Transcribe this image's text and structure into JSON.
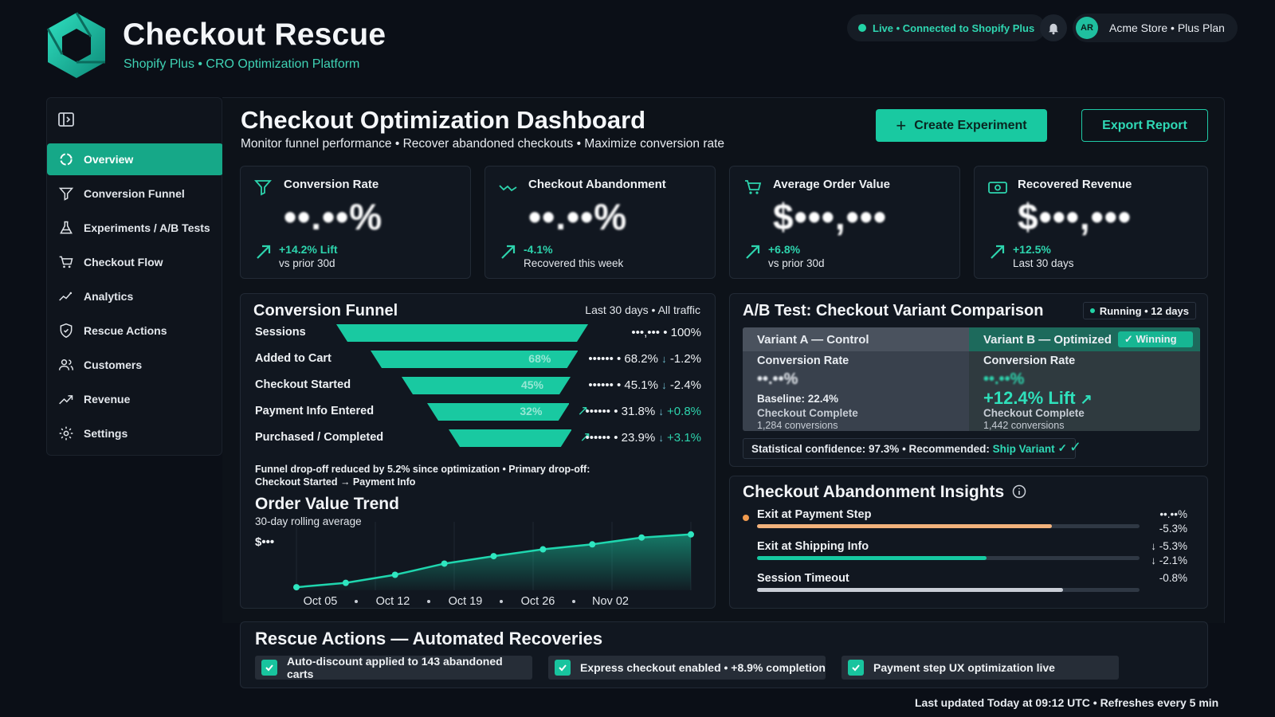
{
  "brand": {
    "title": "Checkout Rescue",
    "subtitle": "Shopify Plus • CRO Optimization Platform",
    "accent": "#19c9a1"
  },
  "header": {
    "live_status": "Live • Connected to Shopify Plus",
    "avatar_initials": "AR",
    "store": "Acme Store • Plus Plan"
  },
  "sidebar": {
    "items": [
      {
        "label": "Overview",
        "icon": "overview-icon",
        "active": true
      },
      {
        "label": "Conversion Funnel",
        "icon": "funnel-icon"
      },
      {
        "label": "Experiments / A/B Tests",
        "icon": "flask-icon"
      },
      {
        "label": "Checkout Flow",
        "icon": "cart-icon"
      },
      {
        "label": "Analytics",
        "icon": "analytics-icon"
      },
      {
        "label": "Rescue Actions",
        "icon": "shield-icon"
      },
      {
        "label": "Customers",
        "icon": "users-icon"
      },
      {
        "label": "Revenue",
        "icon": "trend-icon"
      },
      {
        "label": "Settings",
        "icon": "gear-icon"
      }
    ]
  },
  "page": {
    "title": "Checkout Optimization Dashboard",
    "subtitle": "Monitor funnel performance • Recover abandoned checkouts • Maximize conversion rate",
    "create_button": "Create Experiment",
    "export_button": "Export Report"
  },
  "kpis": [
    {
      "label": "Conversion Rate",
      "value": "••.••%",
      "change": "+14.2% Lift",
      "note": "vs prior 30d"
    },
    {
      "label": "Checkout Abandonment",
      "value": "••.••%",
      "change": "-4.1%",
      "note": "Recovered this week"
    },
    {
      "label": "Average Order Value",
      "value": "$•••,•••",
      "change": "+6.8%",
      "note": "vs prior 30d"
    },
    {
      "label": "Recovered Revenue",
      "value": "$•••,•••",
      "change": "+12.5%",
      "note": "Last 30 days"
    }
  ],
  "funnel": {
    "title": "Conversion Funnel",
    "range": "Last 30 days • All traffic",
    "stages": [
      {
        "label": "Sessions",
        "count": "•••,••• •",
        "pct": "100%",
        "share": 1.0,
        "bar_pct": "",
        "delta": "",
        "delta_arrow": ""
      },
      {
        "label": "Added to Cart",
        "count": "•••••• •",
        "pct": "68.2%",
        "share": 0.68,
        "bar_pct": "68%",
        "delta": "-1.2%",
        "delta_arrow": "↓"
      },
      {
        "label": "Checkout Started",
        "count": "•••••• •",
        "pct": "45.1%",
        "share": 0.45,
        "bar_pct": "45%",
        "delta": "-2.4%",
        "delta_arrow": "↓"
      },
      {
        "label": "Payment Info Entered",
        "count": "•••••• •",
        "pct": "31.8%",
        "share": 0.32,
        "bar_pct": "32%",
        "delta": "+0.8%",
        "delta_arrow": "↓"
      },
      {
        "label": "Purchased / Completed",
        "count": "•••••• •",
        "pct": "23.9%",
        "share": 0.24,
        "bar_pct": "",
        "delta": "+3.1%",
        "delta_arrow": "↓"
      }
    ],
    "note_line1": "Funnel drop-off reduced by 5.2% since optimization • Primary drop-off:",
    "note_line2": "Checkout Started → Payment Info"
  },
  "order_trend": {
    "title": "Order Value Trend",
    "subtitle": "30-day rolling average",
    "y_label": "$•••",
    "chart_data": {
      "type": "area",
      "x_ticks": [
        "Oct 05",
        "Oct 12",
        "Oct 19",
        "Oct 26",
        "Nov 02"
      ],
      "values": [
        0.05,
        0.12,
        0.25,
        0.43,
        0.55,
        0.66,
        0.74,
        0.85,
        0.9
      ],
      "ylim": [
        0,
        1
      ],
      "grid": true
    }
  },
  "ab_test": {
    "title": "A/B Test: Checkout Variant Comparison",
    "status": "Running • 12 days",
    "variant_a": {
      "name": "Variant A — Control",
      "metric": "Conversion Rate",
      "value": "••.••%",
      "baseline": "Baseline: 22.4%",
      "outcome": "Checkout Complete",
      "conversions": "1,284 conversions"
    },
    "variant_b": {
      "name": "Variant B — Optimized",
      "badge": "Winning",
      "metric": "Conversion Rate",
      "value": "••.••%",
      "lift": "+12.4% Lift",
      "outcome": "Checkout Complete",
      "conversions": "1,442 conversions"
    },
    "confidence": "Statistical confidence: 97.3% • Recommended:",
    "recommendation": "Ship Variant"
  },
  "insights": {
    "title": "Checkout Abandonment Insights",
    "rows": [
      {
        "label": "Exit at Payment Step",
        "share": 0.77,
        "color": "#f2b27c",
        "value1": "••.••%",
        "value2": "-5.3%"
      },
      {
        "label": "Exit at Shipping Info",
        "share": 0.6,
        "color": "#16c9a2",
        "value1": "↓ -5.3%",
        "value2": "↓ -2.1%"
      },
      {
        "label": "Session Timeout",
        "share": 0.8,
        "color": "#c9ced6",
        "value1": "-0.8%",
        "value2": ""
      }
    ]
  },
  "rescue": {
    "title": "Rescue Actions — Automated Recoveries",
    "actions": [
      "Auto-discount applied to 143 abandoned carts",
      "Express checkout enabled • +8.9% completion",
      "Payment step UX optimization live"
    ]
  },
  "footer": {
    "updated": "Last updated Today at 09:12 UTC • Refreshes every 5 min"
  }
}
